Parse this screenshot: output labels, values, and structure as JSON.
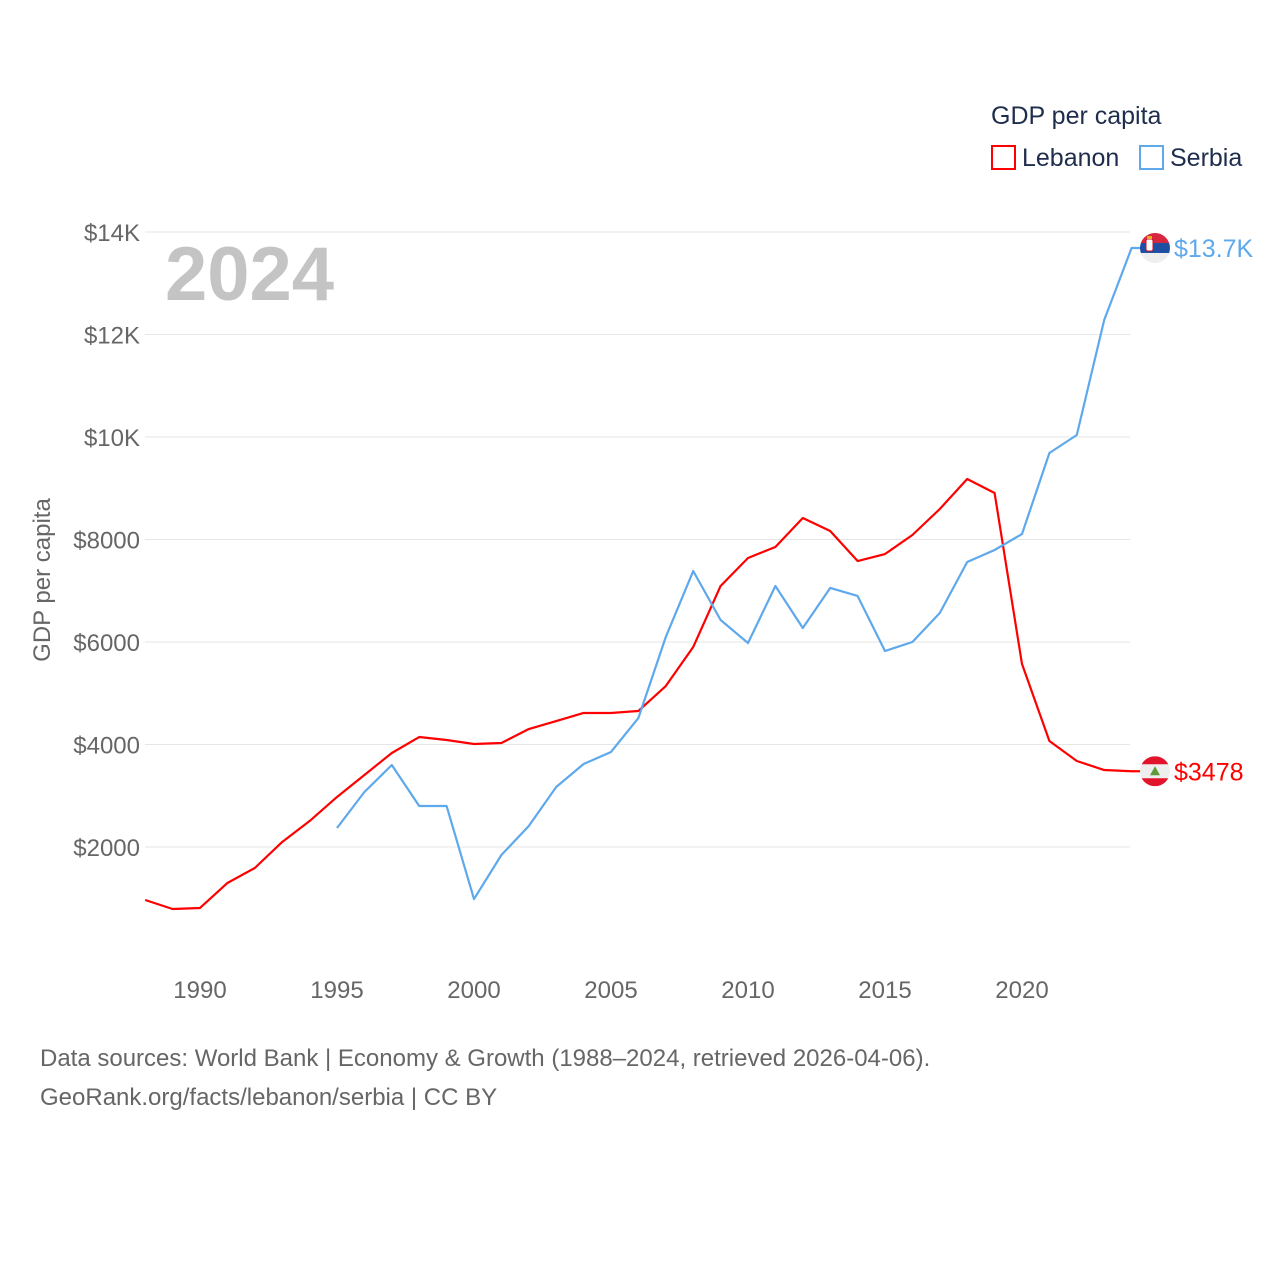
{
  "chart_data": {
    "type": "line",
    "title": "GDP per capita",
    "ylabel": "GDP per capita",
    "xlabel": "",
    "year_label": "2024",
    "xlim": [
      1988,
      2024
    ],
    "ylim": [
      0,
      14000
    ],
    "x_ticks": [
      1990,
      1995,
      2000,
      2005,
      2010,
      2015,
      2020
    ],
    "y_ticks": [
      {
        "value": 2000,
        "label": "$2000"
      },
      {
        "value": 4000,
        "label": "$4000"
      },
      {
        "value": 6000,
        "label": "$6000"
      },
      {
        "value": 8000,
        "label": "$8000"
      },
      {
        "value": 10000,
        "label": "$10K"
      },
      {
        "value": 12000,
        "label": "$12K"
      },
      {
        "value": 14000,
        "label": "$14K"
      }
    ],
    "grid": true,
    "legend_position": "top-right",
    "series": [
      {
        "name": "Lebanon",
        "color": "#ff0000",
        "end_label": "$3478",
        "flag": "lebanon-flag",
        "start_year": 1988,
        "values": [
          966,
          790,
          810,
          1298,
          1590,
          2098,
          2507,
          2976,
          3405,
          3834,
          4146,
          4088,
          4010,
          4029,
          4302,
          4458,
          4615,
          4615,
          4654,
          5141,
          5902,
          7093,
          7639,
          7854,
          8420,
          8166,
          7580,
          7717,
          8088,
          8595,
          9180,
          8907,
          5570,
          4068,
          3678,
          3502,
          3478
        ]
      },
      {
        "name": "Serbia",
        "color": "#5ea8ec",
        "end_label": "$13.7K",
        "flag": "serbia-flag",
        "start_year": 1995,
        "values": [
          2371,
          3073,
          3600,
          2800,
          2800,
          985,
          1844,
          2410,
          3171,
          3620,
          3854,
          4517,
          6098,
          7385,
          6429,
          5980,
          7093,
          6273,
          7054,
          6898,
          5824,
          6000,
          6566,
          7561,
          7795,
          8107,
          9688,
          10039,
          12283,
          13688
        ]
      }
    ]
  },
  "footer": {
    "line1": "Data sources: World Bank | Economy & Growth (1988–2024, retrieved 2026-04-06).",
    "line2": "GeoRank.org/facts/lebanon/serbia | CC BY"
  }
}
